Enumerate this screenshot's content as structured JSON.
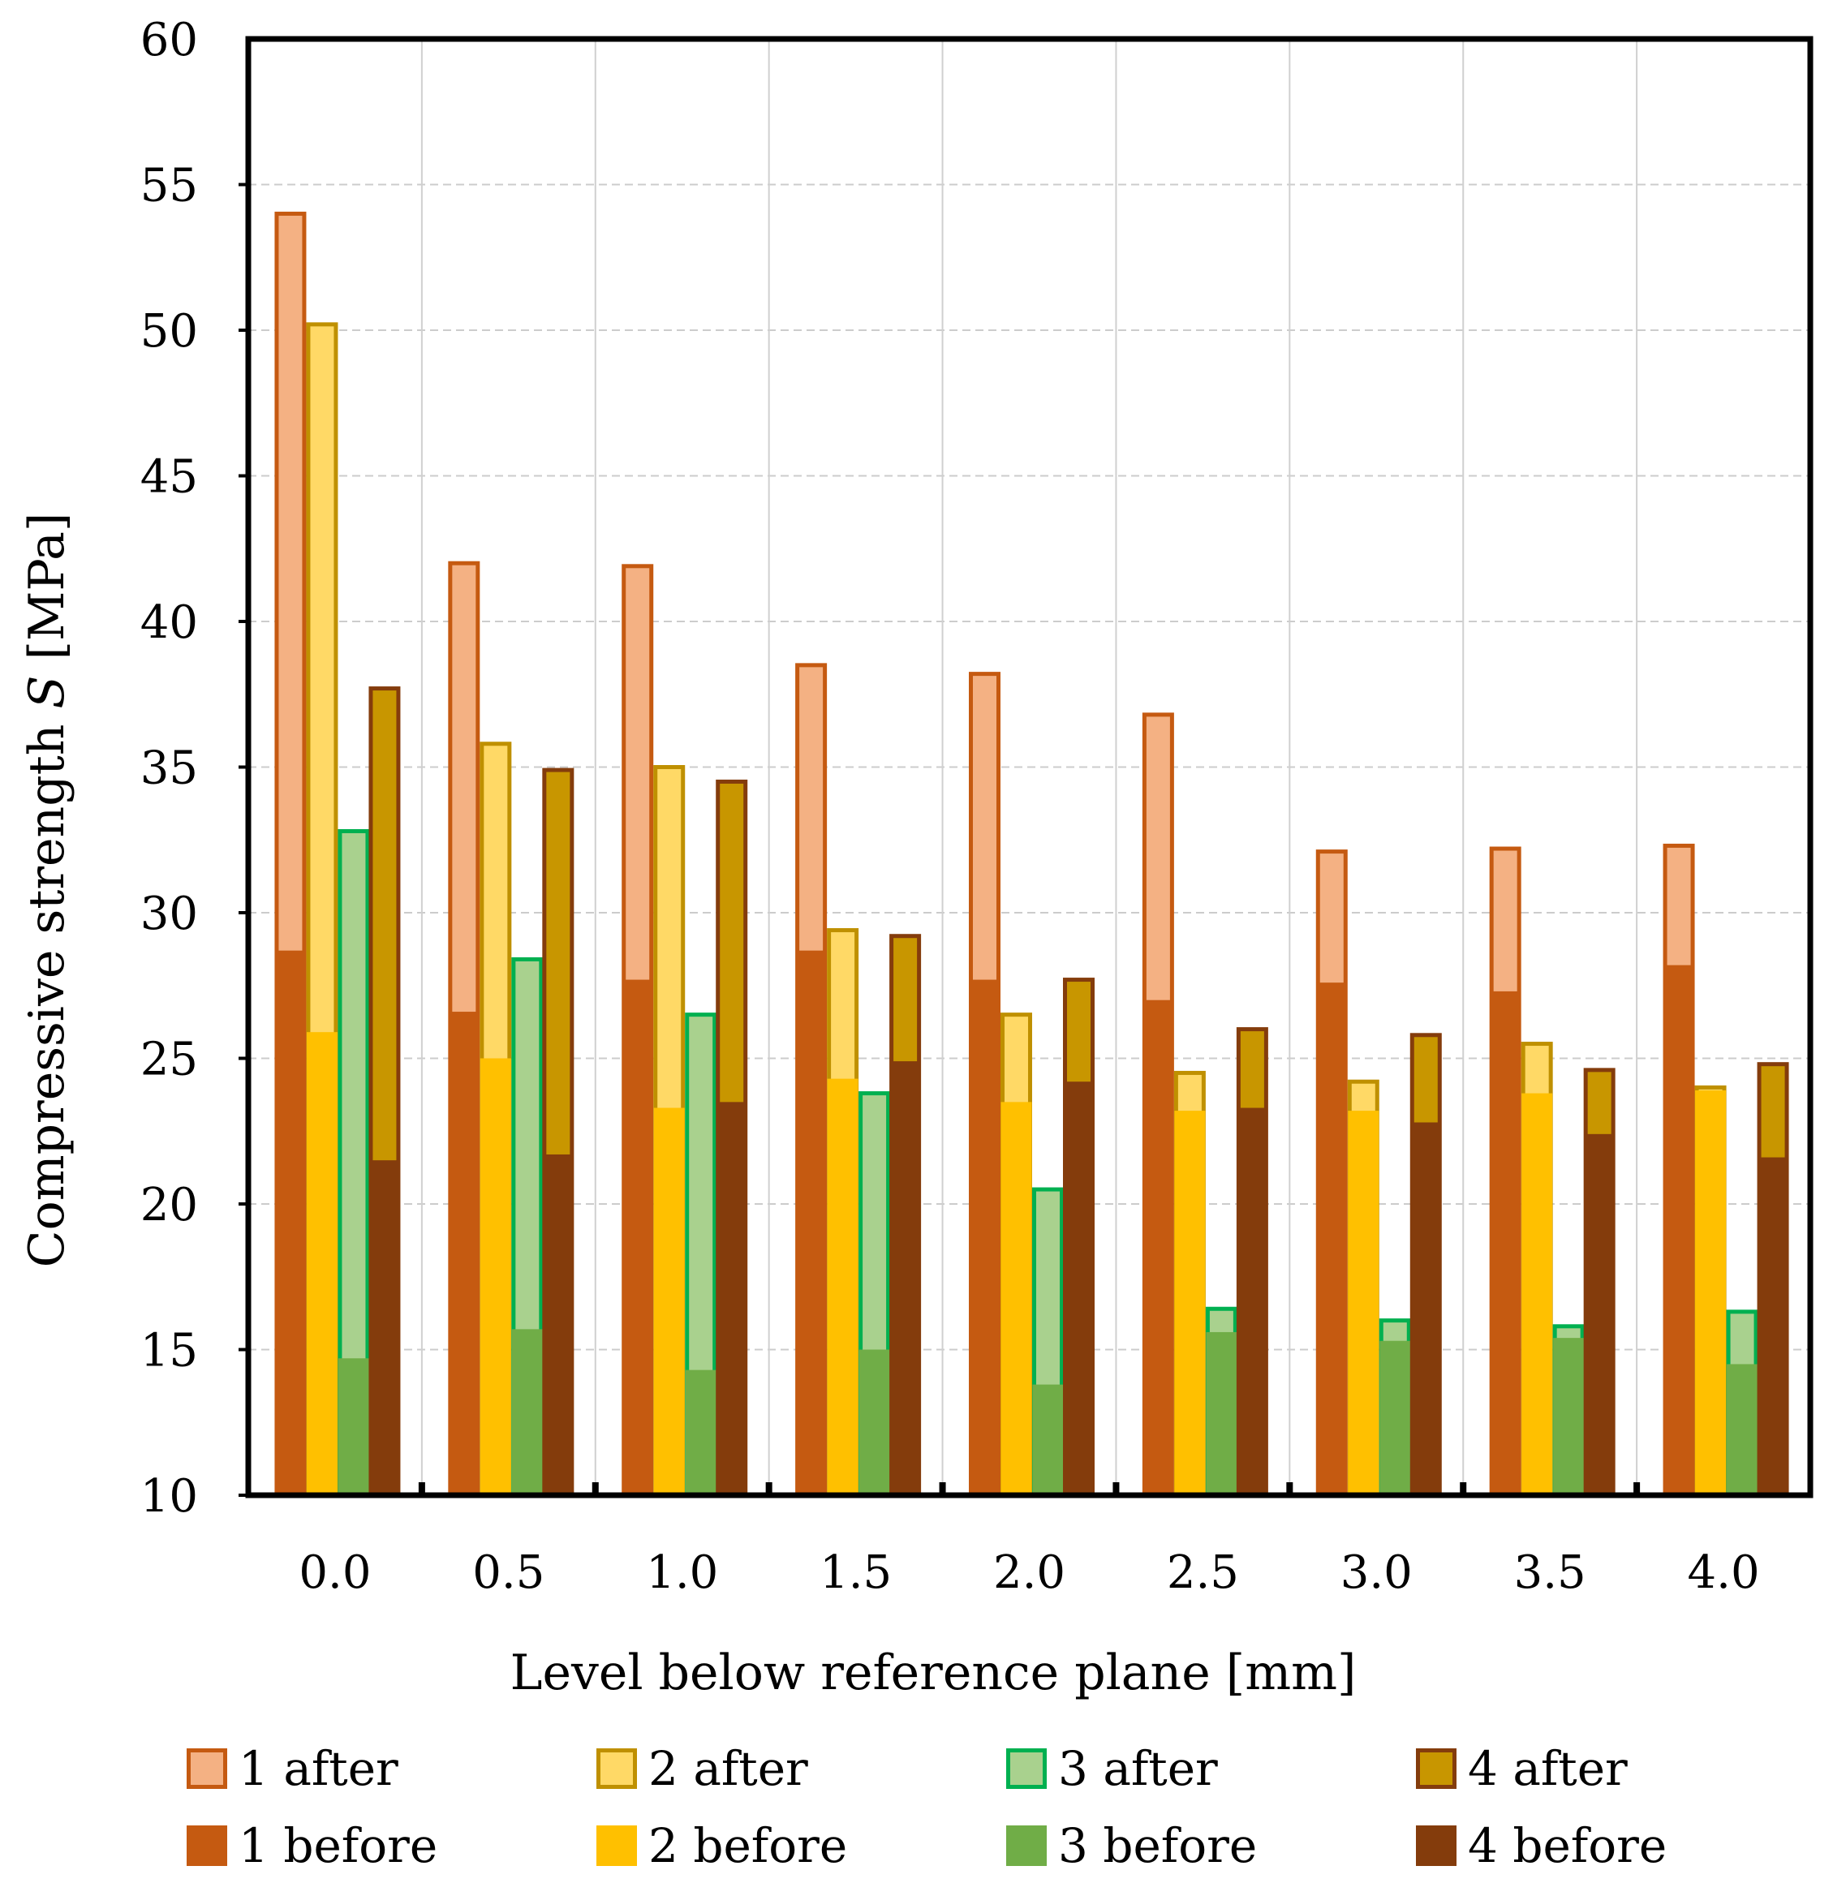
{
  "chart_data": {
    "type": "bar",
    "ylabel_prefix": "Compressive strength ",
    "ylabel_symbol": "S",
    "ylabel_suffix": " [MPa]",
    "xlabel": "Level below reference plane [mm]",
    "ylim": [
      10,
      60
    ],
    "yticks": [
      "10",
      "15",
      "20",
      "25",
      "30",
      "35",
      "40",
      "45",
      "50",
      "55",
      "60"
    ],
    "categories": [
      "0.0",
      "0.5",
      "1.0",
      "1.5",
      "2.0",
      "2.5",
      "3.0",
      "3.5",
      "4.0"
    ],
    "grid": true,
    "series": [
      {
        "name": "1 after",
        "values": [
          54.0,
          42.0,
          41.9,
          38.5,
          38.2,
          36.8,
          32.1,
          32.2,
          32.3
        ]
      },
      {
        "name": "2 after",
        "values": [
          50.2,
          35.8,
          35.0,
          29.4,
          26.5,
          24.5,
          24.2,
          25.5,
          24.0
        ]
      },
      {
        "name": "3 after",
        "values": [
          32.8,
          28.4,
          26.5,
          23.8,
          20.5,
          16.4,
          16.0,
          15.8,
          16.3
        ]
      },
      {
        "name": "4 after",
        "values": [
          37.7,
          34.9,
          34.5,
          29.2,
          27.7,
          26.0,
          25.8,
          24.6,
          24.8
        ]
      },
      {
        "name": "1 before",
        "values": [
          28.7,
          26.6,
          27.7,
          28.7,
          27.7,
          27.0,
          27.6,
          27.3,
          28.2
        ]
      },
      {
        "name": "2 before",
        "values": [
          25.9,
          25.0,
          23.3,
          24.3,
          23.5,
          23.2,
          23.2,
          23.8,
          23.9
        ]
      },
      {
        "name": "3 before",
        "values": [
          14.7,
          15.7,
          14.3,
          15.0,
          13.8,
          15.6,
          15.3,
          15.4,
          14.5
        ]
      },
      {
        "name": "4 before",
        "values": [
          21.5,
          21.7,
          23.5,
          24.9,
          24.2,
          23.3,
          22.8,
          22.4,
          21.6
        ]
      }
    ]
  },
  "colors": {
    "1 after": {
      "fill": "#F4B183",
      "stroke": "#C55A11"
    },
    "2 after": {
      "fill": "#FFD966",
      "stroke": "#BF9000"
    },
    "3 after": {
      "fill": "#A9D18E",
      "stroke": "#00B050"
    },
    "4 after": {
      "fill": "#C89600",
      "stroke": "#843C0C"
    },
    "1 before": {
      "fill": "#C55A11",
      "stroke": "#C55A11"
    },
    "2 before": {
      "fill": "#FFC000",
      "stroke": "#FFC000"
    },
    "3 before": {
      "fill": "#70AD47",
      "stroke": "#70AD47"
    },
    "4 before": {
      "fill": "#843C0C",
      "stroke": "#843C0C"
    }
  }
}
